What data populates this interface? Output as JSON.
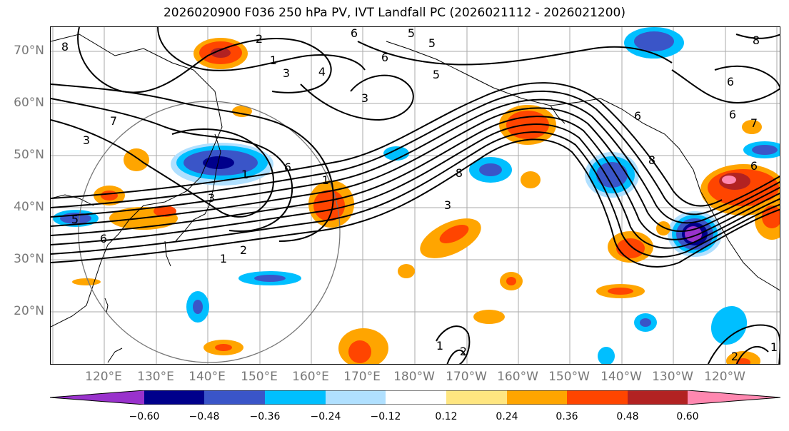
{
  "title": "2026020900 F036 250 hPa PV, IVT Landfall PC (2026021112 - 2026021200)",
  "lat_labels": [
    "70°N",
    "60°N",
    "50°N",
    "40°N",
    "30°N",
    "20°N"
  ],
  "lon_labels": [
    "120°E",
    "130°E",
    "140°E",
    "150°E",
    "160°E",
    "170°E",
    "180°W",
    "170°W",
    "160°W",
    "150°W",
    "140°W",
    "130°W",
    "120°W"
  ],
  "contour_labels": [
    "8",
    "2",
    "1",
    "4",
    "6",
    "5",
    "3",
    "6",
    "5",
    "5",
    "8",
    "3",
    "3",
    "7",
    "6",
    "1",
    "3",
    "1",
    "2",
    "1",
    "5",
    "6",
    "6",
    "3",
    "8",
    "6",
    "6",
    "8",
    "6",
    "1",
    "2",
    "2",
    "1",
    "7"
  ],
  "colorbar": {
    "ticks": [
      "−0.60",
      "−0.48",
      "−0.36",
      "−0.24",
      "−0.12",
      "0.12",
      "0.24",
      "0.36",
      "0.48",
      "0.60"
    ],
    "colors": [
      "#9932cc",
      "#00008b",
      "#3a55c8",
      "#00bfff",
      "#b0e0ff",
      "#ffffff",
      "#ffe680",
      "#ffa500",
      "#ff4500",
      "#b22222",
      "#ff88b0"
    ]
  }
}
